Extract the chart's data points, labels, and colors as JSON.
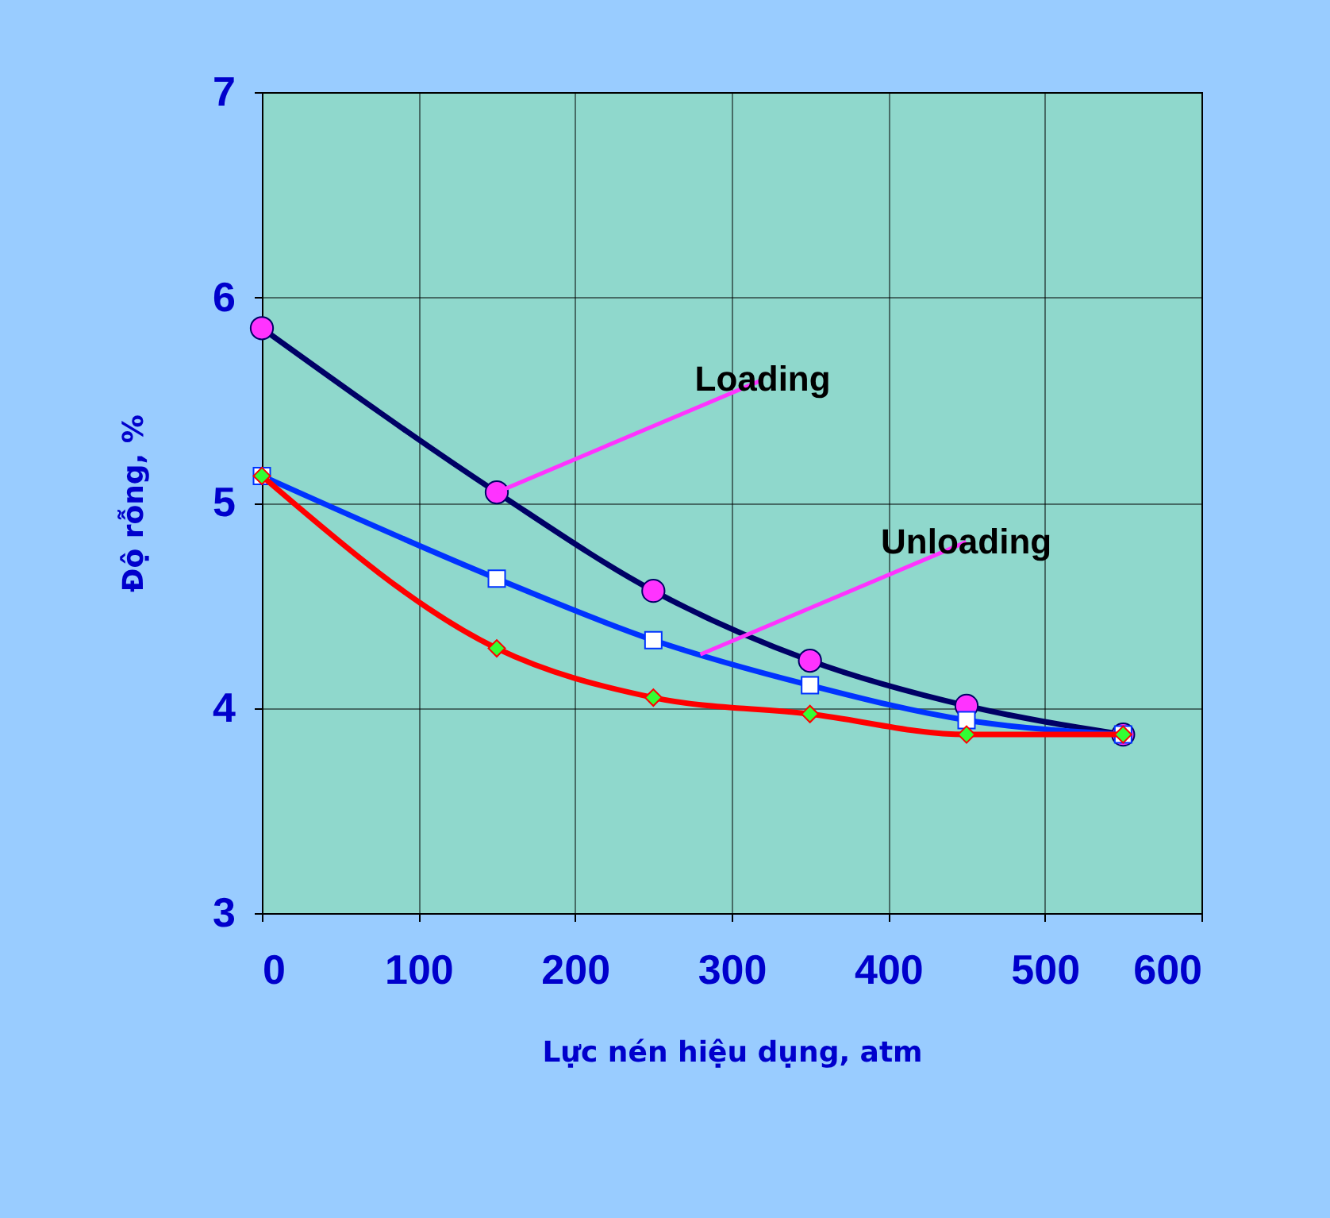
{
  "chart_data": {
    "type": "line",
    "xlabel": "Lực nén hiệu dụng, atm",
    "ylabel": "Độ rỗng, %",
    "x": [
      0,
      150,
      250,
      350,
      450,
      550
    ],
    "series": [
      {
        "color": "#000066",
        "values": [
          5.85,
          5.05,
          4.57,
          4.23,
          4.01,
          3.87
        ],
        "marker": "circle"
      },
      {
        "color": "#0033ff",
        "values": [
          5.13,
          4.63,
          4.33,
          4.11,
          3.94,
          3.87
        ],
        "marker": "square"
      },
      {
        "color": "#ff0000",
        "values": [
          5.13,
          4.29,
          4.05,
          3.97,
          3.87,
          3.87
        ],
        "marker": "diamond"
      }
    ],
    "xlim": [
      0,
      600
    ],
    "xticks": [
      0,
      100,
      200,
      300,
      400,
      500,
      600
    ],
    "ylim": [
      3,
      7
    ],
    "yticks": [
      {
        "value": 3,
        "label": "3"
      },
      {
        "value": 4,
        "label": "4"
      },
      {
        "value": 5,
        "label": "5"
      },
      {
        "value": 6,
        "label": "6"
      },
      {
        "value": 7,
        "label": "7"
      }
    ],
    "grid": true,
    "line_style": "solid",
    "annotations": [
      {
        "text": "Loading",
        "x": 150,
        "y": 5.05
      },
      {
        "text": "Unloading",
        "x": 280,
        "y": 4.26
      }
    ]
  }
}
